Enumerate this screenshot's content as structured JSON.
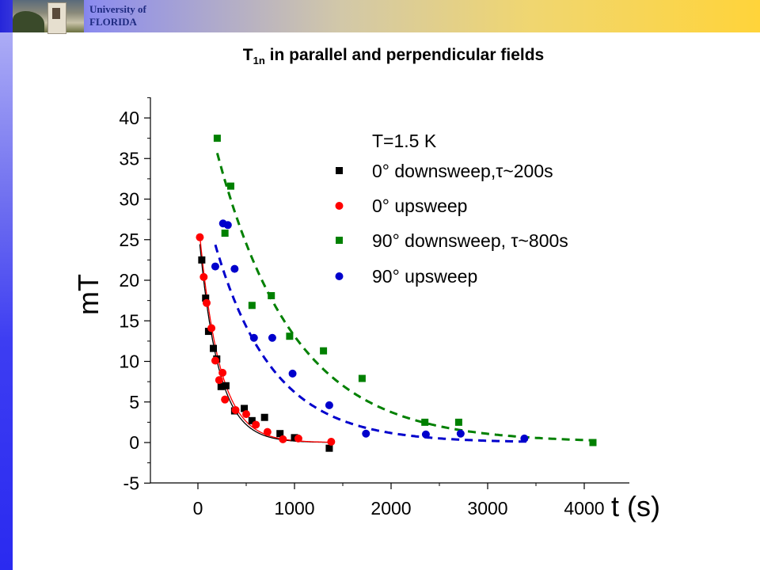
{
  "header": {
    "university_line1": "University of",
    "university_line2": "FLORIDA"
  },
  "slide": {
    "title_main": "T",
    "title_sub": "1n",
    "title_rest": " in parallel and perpendicular fields"
  },
  "colors": {
    "black_series": "#000000",
    "red_series": "#ff0000",
    "green_series": "#008000",
    "blue_series": "#0000cc"
  },
  "chart_data": {
    "type": "scatter",
    "xlabel": "t (s)",
    "ylabel": "mT",
    "xlim": [
      -500,
      4500
    ],
    "ylim": [
      -5,
      43
    ],
    "x_ticks": [
      0,
      1000,
      2000,
      3000,
      4000
    ],
    "y_ticks": [
      -5,
      0,
      5,
      10,
      15,
      20,
      25,
      30,
      35,
      40
    ],
    "grid": false,
    "annotation": "T=1.5 K",
    "legend_position": "top-right",
    "series": [
      {
        "name": "0° downsweep,τ~200s",
        "marker": "square",
        "color": "#000000",
        "points": [
          [
            40,
            22.5
          ],
          [
            80,
            17.8
          ],
          [
            110,
            13.7
          ],
          [
            160,
            11.6
          ],
          [
            195,
            10.3
          ],
          [
            240,
            6.9
          ],
          [
            290,
            7.0
          ],
          [
            380,
            3.9
          ],
          [
            480,
            4.2
          ],
          [
            560,
            2.7
          ],
          [
            690,
            3.1
          ],
          [
            850,
            1.1
          ],
          [
            1000,
            0.6
          ],
          [
            1360,
            -0.7
          ]
        ]
      },
      {
        "name": "0° upsweep",
        "marker": "circle",
        "color": "#ff0000",
        "points": [
          [
            20,
            25.3
          ],
          [
            60,
            20.4
          ],
          [
            90,
            17.2
          ],
          [
            140,
            14.1
          ],
          [
            180,
            10.1
          ],
          [
            220,
            7.7
          ],
          [
            255,
            8.6
          ],
          [
            280,
            5.3
          ],
          [
            390,
            4.0
          ],
          [
            500,
            3.5
          ],
          [
            600,
            2.2
          ],
          [
            720,
            1.3
          ],
          [
            880,
            0.4
          ],
          [
            1040,
            0.5
          ],
          [
            1380,
            0.1
          ]
        ]
      },
      {
        "name": "90° downsweep, τ~800s",
        "marker": "square",
        "color": "#008000",
        "points": [
          [
            200,
            37.5
          ],
          [
            280,
            25.8
          ],
          [
            340,
            31.6
          ],
          [
            560,
            16.9
          ],
          [
            760,
            18.1
          ],
          [
            950,
            13.1
          ],
          [
            1300,
            11.3
          ],
          [
            1700,
            7.9
          ],
          [
            2350,
            2.5
          ],
          [
            2700,
            2.5
          ],
          [
            4090,
            0.0
          ]
        ]
      },
      {
        "name": "90° upsweep",
        "marker": "circle",
        "color": "#0000cc",
        "points": [
          [
            180,
            21.7
          ],
          [
            260,
            27.0
          ],
          [
            310,
            26.8
          ],
          [
            380,
            21.4
          ],
          [
            580,
            12.9
          ],
          [
            770,
            12.9
          ],
          [
            980,
            8.5
          ],
          [
            1360,
            4.6
          ],
          [
            1740,
            1.1
          ],
          [
            2360,
            1.0
          ],
          [
            2720,
            1.1
          ],
          [
            3380,
            0.5
          ]
        ]
      }
    ],
    "fit_curves": [
      {
        "color": "#000000",
        "style": "solid",
        "amplitude": 27,
        "tau": 200,
        "offset": 0,
        "x_range": [
          20,
          1400
        ]
      },
      {
        "color": "#ff0000",
        "style": "solid",
        "amplitude": 28,
        "tau": 210,
        "offset": 0,
        "x_range": [
          20,
          1400
        ]
      },
      {
        "color": "#008000",
        "style": "dashed",
        "amplitude": 45.8,
        "tau": 800,
        "offset": 0,
        "x_range": [
          200,
          4100
        ]
      },
      {
        "color": "#0000cc",
        "style": "dashed",
        "amplitude": 32.9,
        "tau": 600,
        "offset": 0,
        "x_range": [
          180,
          3400
        ]
      }
    ]
  }
}
